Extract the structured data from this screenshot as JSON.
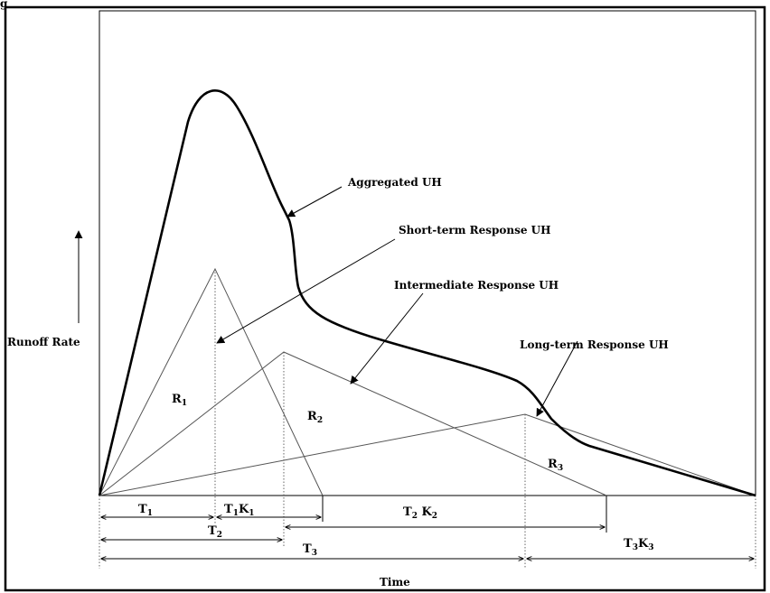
{
  "header": {
    "caption": "g"
  },
  "labels": {
    "aggregated": "Aggregated UH",
    "short_term": "Short-term Response UH",
    "intermediate": "Intermediate Response UH",
    "long_term": "Long-term Response UH",
    "y_axis": "Runoff Rate",
    "x_axis": "Time"
  },
  "regions": {
    "r1": {
      "base": "R",
      "sub": "1"
    },
    "r2": {
      "base": "R",
      "sub": "2"
    },
    "r3": {
      "base": "R",
      "sub": "3"
    }
  },
  "dimensions": {
    "t1": {
      "base": "T",
      "sub": "1"
    },
    "t1k1": {
      "base1": "T",
      "sub1": "1",
      "base2": "K",
      "sub2": "1"
    },
    "t2": {
      "base": "T",
      "sub": "2"
    },
    "t2k2": {
      "base1": "T",
      "sub1": "2",
      "base2": " K",
      "sub2": "2"
    },
    "t3": {
      "base": "T",
      "sub": "3"
    },
    "t3k3": {
      "base1": "T",
      "sub1": "3",
      "base2": "K",
      "sub2": "3"
    }
  }
}
